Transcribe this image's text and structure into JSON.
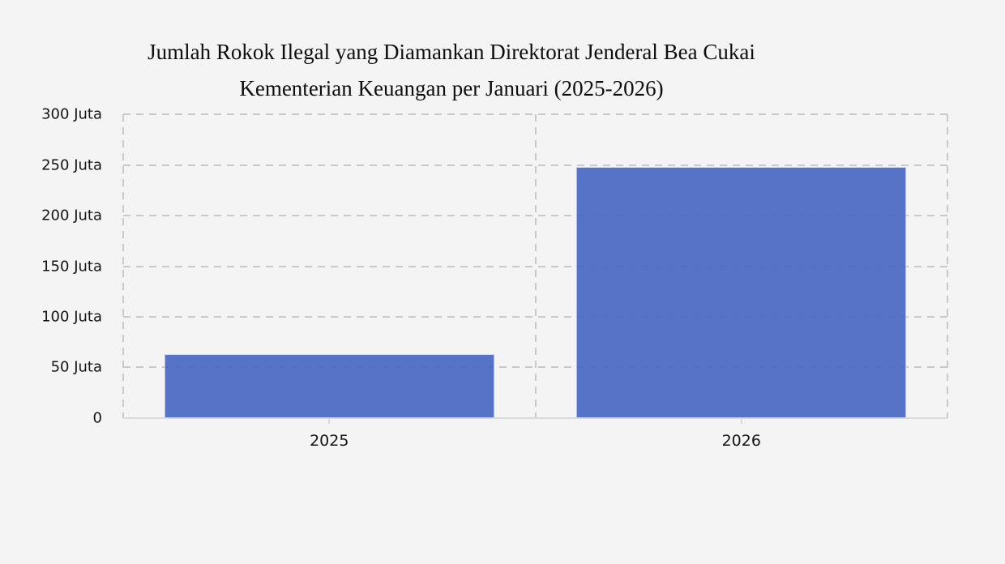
{
  "title": {
    "line1": "Jumlah Rokok Ilegal yang Diamankan Direktorat Jenderal Bea Cukai",
    "line2": "Kementerian Keuangan per Januari (2025-2026)"
  },
  "chart_data": {
    "type": "bar",
    "title": "Jumlah Rokok Ilegal yang Diamankan Direktorat Jenderal Bea Cukai Kementerian Keuangan per Januari (2025-2026)",
    "categories": [
      "2025",
      "2026"
    ],
    "values": [
      63,
      248
    ],
    "unit": "Juta",
    "xlabel": "",
    "ylabel": "",
    "ylim": [
      0,
      300
    ],
    "ytick_step": 50,
    "ytick_labels_top_to_bottom": [
      "300 Juta",
      "250 Juta",
      "200 Juta",
      "150 Juta",
      "100 Juta",
      "50 Juta",
      "0"
    ],
    "grid": "dashed horizontal and vertical category separators, plot frame dashed on left/right/top, solid light axis at bottom",
    "legend": "none",
    "bar_color": "#4766c4",
    "bar_opacity": 0.9,
    "grid_color": "#c9c9c9",
    "axis_color": "#d9d9d9",
    "background": "#f4f4f4",
    "text_color": "#111111"
  }
}
